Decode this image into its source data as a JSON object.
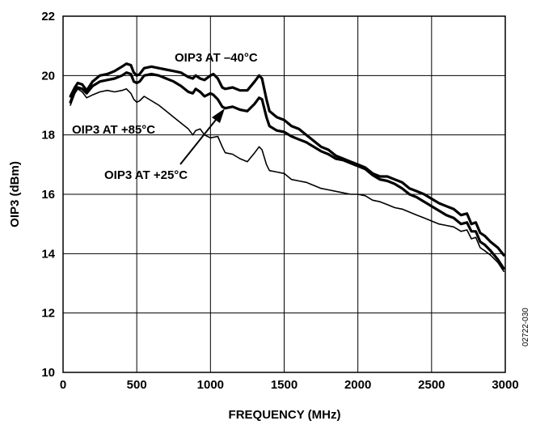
{
  "chart_data": {
    "type": "line",
    "title": "",
    "xlabel": "FREQUENCY (MHz)",
    "ylabel": "OIP3 (dBm)",
    "xlim": [
      0,
      3000
    ],
    "ylim": [
      10,
      22
    ],
    "x_ticks": [
      0,
      500,
      1000,
      1500,
      2000,
      2500,
      3000
    ],
    "y_ticks": [
      10,
      12,
      14,
      16,
      18,
      20,
      22
    ],
    "grid": true,
    "figure_id": "02722-030",
    "annotations": [
      {
        "text": "OIP3 AT –40°C",
        "series": 0
      },
      {
        "text": "OIP3 AT +85°C",
        "series": 2
      },
      {
        "text": "OIP3 AT +25°C",
        "series": 1
      }
    ],
    "series": [
      {
        "line_width": 3.2,
        "points": [
          [
            50,
            19.3
          ],
          [
            80,
            19.6
          ],
          [
            100,
            19.75
          ],
          [
            130,
            19.7
          ],
          [
            160,
            19.5
          ],
          [
            200,
            19.8
          ],
          [
            250,
            20.0
          ],
          [
            300,
            20.05
          ],
          [
            350,
            20.15
          ],
          [
            400,
            20.3
          ],
          [
            430,
            20.4
          ],
          [
            460,
            20.35
          ],
          [
            480,
            20.1
          ],
          [
            500,
            20.0
          ],
          [
            520,
            20.05
          ],
          [
            550,
            20.25
          ],
          [
            600,
            20.3
          ],
          [
            650,
            20.25
          ],
          [
            700,
            20.2
          ],
          [
            750,
            20.15
          ],
          [
            800,
            20.1
          ],
          [
            850,
            19.95
          ],
          [
            880,
            19.9
          ],
          [
            900,
            20.0
          ],
          [
            930,
            19.9
          ],
          [
            960,
            19.85
          ],
          [
            1000,
            20.0
          ],
          [
            1020,
            20.05
          ],
          [
            1050,
            19.9
          ],
          [
            1080,
            19.6
          ],
          [
            1100,
            19.55
          ],
          [
            1150,
            19.6
          ],
          [
            1200,
            19.5
          ],
          [
            1250,
            19.5
          ],
          [
            1300,
            19.8
          ],
          [
            1330,
            20.0
          ],
          [
            1350,
            19.9
          ],
          [
            1380,
            19.2
          ],
          [
            1400,
            18.8
          ],
          [
            1450,
            18.6
          ],
          [
            1500,
            18.5
          ],
          [
            1550,
            18.3
          ],
          [
            1600,
            18.2
          ],
          [
            1650,
            18.0
          ],
          [
            1700,
            17.8
          ],
          [
            1750,
            17.6
          ],
          [
            1800,
            17.5
          ],
          [
            1850,
            17.3
          ],
          [
            1900,
            17.2
          ],
          [
            1950,
            17.1
          ],
          [
            2000,
            17.0
          ],
          [
            2050,
            16.9
          ],
          [
            2100,
            16.7
          ],
          [
            2150,
            16.6
          ],
          [
            2200,
            16.6
          ],
          [
            2250,
            16.5
          ],
          [
            2300,
            16.4
          ],
          [
            2350,
            16.2
          ],
          [
            2400,
            16.1
          ],
          [
            2450,
            16.0
          ],
          [
            2500,
            15.85
          ],
          [
            2550,
            15.7
          ],
          [
            2600,
            15.6
          ],
          [
            2650,
            15.5
          ],
          [
            2700,
            15.3
          ],
          [
            2740,
            15.35
          ],
          [
            2770,
            15.0
          ],
          [
            2800,
            15.05
          ],
          [
            2830,
            14.7
          ],
          [
            2860,
            14.6
          ],
          [
            2900,
            14.4
          ],
          [
            2950,
            14.2
          ],
          [
            2990,
            13.95
          ]
        ]
      },
      {
        "line_width": 3.2,
        "points": [
          [
            50,
            19.1
          ],
          [
            80,
            19.5
          ],
          [
            100,
            19.6
          ],
          [
            130,
            19.55
          ],
          [
            160,
            19.4
          ],
          [
            200,
            19.65
          ],
          [
            250,
            19.8
          ],
          [
            300,
            19.85
          ],
          [
            350,
            19.9
          ],
          [
            400,
            20.0
          ],
          [
            430,
            20.1
          ],
          [
            460,
            20.05
          ],
          [
            480,
            19.8
          ],
          [
            500,
            19.75
          ],
          [
            520,
            19.8
          ],
          [
            550,
            20.0
          ],
          [
            600,
            20.05
          ],
          [
            650,
            20.0
          ],
          [
            700,
            19.9
          ],
          [
            750,
            19.8
          ],
          [
            800,
            19.65
          ],
          [
            850,
            19.45
          ],
          [
            880,
            19.4
          ],
          [
            900,
            19.55
          ],
          [
            930,
            19.45
          ],
          [
            960,
            19.3
          ],
          [
            1000,
            19.4
          ],
          [
            1020,
            19.35
          ],
          [
            1050,
            19.2
          ],
          [
            1080,
            18.95
          ],
          [
            1100,
            18.9
          ],
          [
            1150,
            18.95
          ],
          [
            1200,
            18.85
          ],
          [
            1250,
            18.8
          ],
          [
            1300,
            19.05
          ],
          [
            1330,
            19.25
          ],
          [
            1350,
            19.2
          ],
          [
            1380,
            18.6
          ],
          [
            1400,
            18.3
          ],
          [
            1450,
            18.15
          ],
          [
            1500,
            18.1
          ],
          [
            1550,
            17.95
          ],
          [
            1600,
            17.85
          ],
          [
            1650,
            17.75
          ],
          [
            1700,
            17.6
          ],
          [
            1750,
            17.45
          ],
          [
            1800,
            17.35
          ],
          [
            1850,
            17.2
          ],
          [
            1900,
            17.15
          ],
          [
            1950,
            17.05
          ],
          [
            2000,
            16.95
          ],
          [
            2050,
            16.85
          ],
          [
            2100,
            16.65
          ],
          [
            2150,
            16.5
          ],
          [
            2200,
            16.45
          ],
          [
            2250,
            16.35
          ],
          [
            2300,
            16.2
          ],
          [
            2350,
            16.0
          ],
          [
            2400,
            15.9
          ],
          [
            2450,
            15.75
          ],
          [
            2500,
            15.6
          ],
          [
            2550,
            15.45
          ],
          [
            2600,
            15.3
          ],
          [
            2650,
            15.2
          ],
          [
            2700,
            15.0
          ],
          [
            2740,
            15.05
          ],
          [
            2770,
            14.75
          ],
          [
            2800,
            14.75
          ],
          [
            2830,
            14.4
          ],
          [
            2860,
            14.3
          ],
          [
            2900,
            14.1
          ],
          [
            2950,
            13.8
          ],
          [
            2990,
            13.5
          ]
        ]
      },
      {
        "line_width": 1.6,
        "points": [
          [
            50,
            19.0
          ],
          [
            80,
            19.4
          ],
          [
            100,
            19.55
          ],
          [
            130,
            19.45
          ],
          [
            160,
            19.25
          ],
          [
            200,
            19.35
          ],
          [
            250,
            19.45
          ],
          [
            300,
            19.5
          ],
          [
            350,
            19.45
          ],
          [
            400,
            19.5
          ],
          [
            430,
            19.55
          ],
          [
            460,
            19.4
          ],
          [
            480,
            19.2
          ],
          [
            500,
            19.1
          ],
          [
            520,
            19.15
          ],
          [
            550,
            19.3
          ],
          [
            600,
            19.15
          ],
          [
            650,
            19.0
          ],
          [
            700,
            18.8
          ],
          [
            750,
            18.6
          ],
          [
            800,
            18.4
          ],
          [
            850,
            18.2
          ],
          [
            880,
            18.0
          ],
          [
            900,
            18.15
          ],
          [
            930,
            18.2
          ],
          [
            960,
            18.0
          ],
          [
            1000,
            17.9
          ],
          [
            1050,
            17.95
          ],
          [
            1080,
            17.6
          ],
          [
            1100,
            17.4
          ],
          [
            1150,
            17.35
          ],
          [
            1200,
            17.2
          ],
          [
            1250,
            17.1
          ],
          [
            1300,
            17.4
          ],
          [
            1330,
            17.6
          ],
          [
            1350,
            17.5
          ],
          [
            1380,
            17.0
          ],
          [
            1400,
            16.8
          ],
          [
            1450,
            16.75
          ],
          [
            1500,
            16.7
          ],
          [
            1550,
            16.5
          ],
          [
            1600,
            16.45
          ],
          [
            1650,
            16.4
          ],
          [
            1700,
            16.3
          ],
          [
            1750,
            16.2
          ],
          [
            1800,
            16.15
          ],
          [
            1850,
            16.1
          ],
          [
            1900,
            16.05
          ],
          [
            1950,
            16.0
          ],
          [
            2000,
            16.0
          ],
          [
            2050,
            15.95
          ],
          [
            2100,
            15.8
          ],
          [
            2150,
            15.75
          ],
          [
            2200,
            15.65
          ],
          [
            2250,
            15.55
          ],
          [
            2300,
            15.5
          ],
          [
            2350,
            15.4
          ],
          [
            2400,
            15.3
          ],
          [
            2450,
            15.2
          ],
          [
            2500,
            15.1
          ],
          [
            2550,
            15.0
          ],
          [
            2600,
            14.95
          ],
          [
            2650,
            14.9
          ],
          [
            2700,
            14.75
          ],
          [
            2740,
            14.8
          ],
          [
            2770,
            14.5
          ],
          [
            2800,
            14.55
          ],
          [
            2830,
            14.2
          ],
          [
            2860,
            14.1
          ],
          [
            2900,
            13.95
          ],
          [
            2950,
            13.7
          ],
          [
            2990,
            13.4
          ]
        ]
      }
    ]
  }
}
